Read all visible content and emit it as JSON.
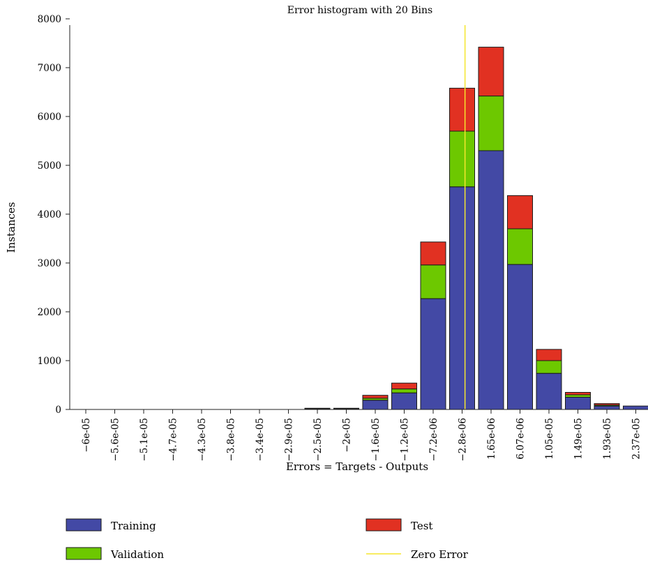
{
  "chart_data": {
    "type": "bar",
    "stacked": true,
    "title": "Error histogram with 20 Bins",
    "xlabel": "Errors = Targets - Outputs",
    "ylabel": "Instances",
    "ylim": [
      0,
      8400
    ],
    "yticks": [
      0,
      1000,
      2000,
      3000,
      4000,
      5000,
      6000,
      7000,
      8000
    ],
    "grid": false,
    "legend_position": "bottom",
    "categories": [
      "−6e-05",
      "−5.6e-05",
      "−5.1e-05",
      "−4.7e-05",
      "−4.3e-05",
      "−3.8e-05",
      "−3.4e-05",
      "−2.9e-05",
      "−2.5e-05",
      "−2e-05",
      "−1.6e-05",
      "−1.2e-05",
      "−7.2e-06",
      "−2.8e-06",
      "1.65e-06",
      "6.07e-06",
      "1.05e-05",
      "1.49e-05",
      "1.93e-05",
      "2.37e-05"
    ],
    "series": [
      {
        "name": "Training",
        "color": "#4349a5",
        "values": [
          0,
          0,
          0,
          0,
          0,
          0,
          0,
          0,
          15,
          15,
          190,
          340,
          2270,
          4560,
          5300,
          2970,
          740,
          250,
          70,
          70
        ]
      },
      {
        "name": "Validation",
        "color": "#6dc800",
        "values": [
          0,
          0,
          0,
          0,
          0,
          0,
          0,
          0,
          5,
          5,
          40,
          80,
          690,
          1140,
          1120,
          730,
          260,
          50,
          20,
          0
        ]
      },
      {
        "name": "Test",
        "color": "#e13122",
        "values": [
          0,
          0,
          0,
          0,
          0,
          0,
          0,
          0,
          5,
          5,
          60,
          120,
          470,
          880,
          1000,
          680,
          230,
          50,
          30,
          0
        ]
      }
    ],
    "zero_error": {
      "name": "Zero Error",
      "color": "#f5e62d",
      "bin_position": 13.1
    },
    "legend": [
      {
        "name": "Training",
        "color": "#4349a5",
        "kind": "box"
      },
      {
        "name": "Test",
        "color": "#e13122",
        "kind": "box"
      },
      {
        "name": "Validation",
        "color": "#6dc800",
        "kind": "box"
      },
      {
        "name": "Zero Error",
        "color": "#f5e62d",
        "kind": "line"
      }
    ]
  }
}
